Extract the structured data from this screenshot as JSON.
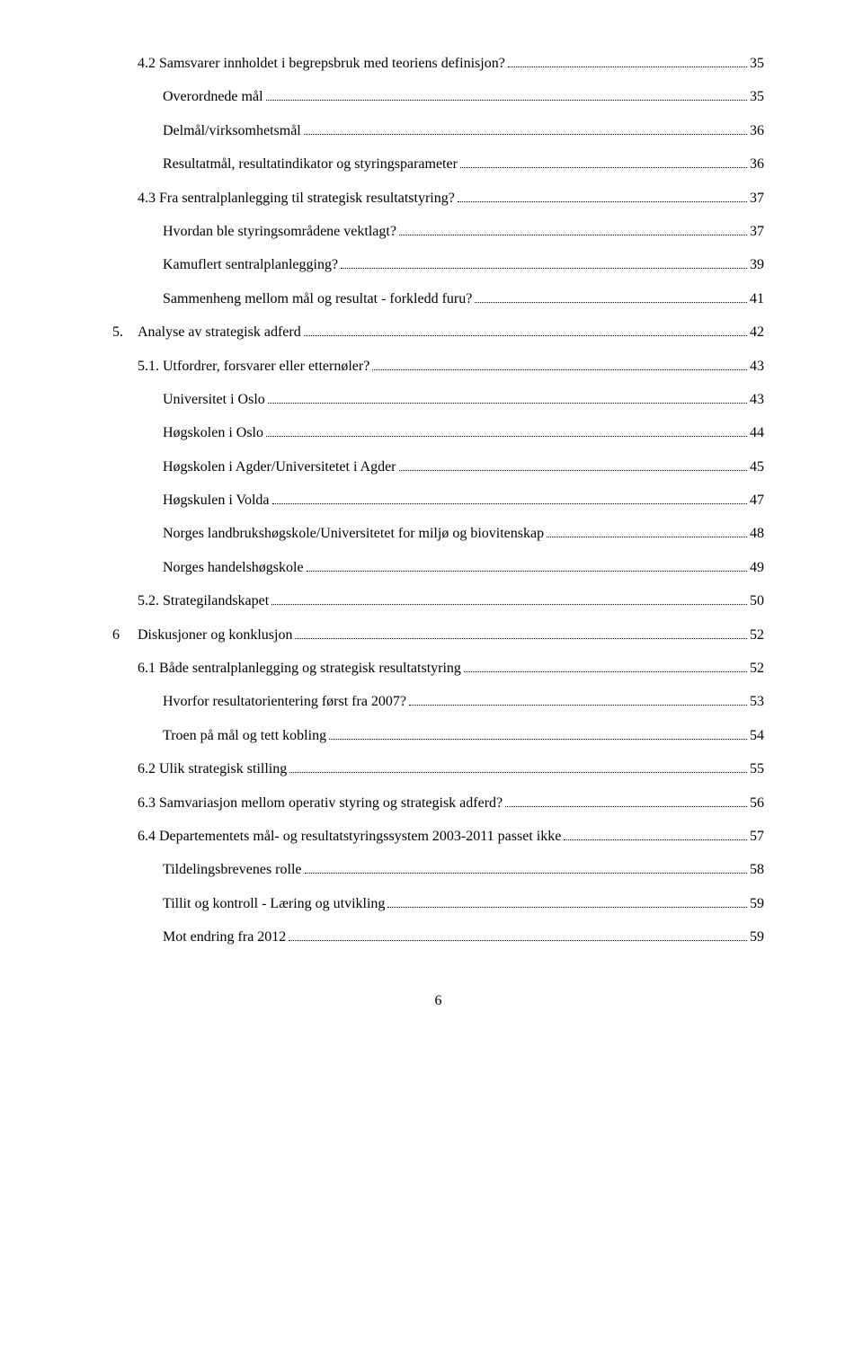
{
  "toc": [
    {
      "indent": 1,
      "num": "",
      "text": "4.2 Samsvarer innholdet i begrepsbruk med teoriens definisjon?",
      "page": "35"
    },
    {
      "indent": 2,
      "num": "",
      "text": "Overordnede mål",
      "page": "35"
    },
    {
      "indent": 2,
      "num": "",
      "text": "Delmål/virksomhetsmål",
      "page": "36"
    },
    {
      "indent": 2,
      "num": "",
      "text": "Resultatmål, resultatindikator og styringsparameter",
      "page": "36"
    },
    {
      "indent": 1,
      "num": "",
      "text": "4.3 Fra sentralplanlegging til strategisk resultatstyring?",
      "page": "37"
    },
    {
      "indent": 2,
      "num": "",
      "text": "Hvordan ble styringsområdene vektlagt?",
      "page": "37"
    },
    {
      "indent": 2,
      "num": "",
      "text": "Kamuflert sentralplanlegging?",
      "page": "39"
    },
    {
      "indent": 2,
      "num": "",
      "text": "Sammenheng mellom mål og resultat - forkledd furu?",
      "page": "41"
    },
    {
      "indent": 0,
      "num": "5.",
      "text": "Analyse av strategisk adferd",
      "page": "42"
    },
    {
      "indent": 1,
      "num": "",
      "text": "5.1. Utfordrer, forsvarer eller etternøler?",
      "page": "43"
    },
    {
      "indent": 2,
      "num": "",
      "text": "Universitet i Oslo",
      "page": "43"
    },
    {
      "indent": 2,
      "num": "",
      "text": "Høgskolen i Oslo",
      "page": "44"
    },
    {
      "indent": 2,
      "num": "",
      "text": "Høgskolen i Agder/Universitetet i Agder",
      "page": "45"
    },
    {
      "indent": 2,
      "num": "",
      "text": "Høgskulen i Volda",
      "page": "47"
    },
    {
      "indent": 2,
      "num": "",
      "text": "Norges landbrukshøgskole/Universitetet for miljø og biovitenskap",
      "page": "48"
    },
    {
      "indent": 2,
      "num": "",
      "text": "Norges handelshøgskole",
      "page": "49"
    },
    {
      "indent": 1,
      "num": "",
      "text": "5.2. Strategilandskapet",
      "page": "50"
    },
    {
      "indent": 0,
      "num": "6",
      "text": "Diskusjoner og konklusjon",
      "page": "52"
    },
    {
      "indent": 1,
      "num": "",
      "text": "6.1 Både sentralplanlegging og strategisk resultatstyring",
      "page": "52"
    },
    {
      "indent": 2,
      "num": "",
      "text": "Hvorfor resultatorientering først fra 2007?",
      "page": "53"
    },
    {
      "indent": 2,
      "num": "",
      "text": "Troen på mål og tett kobling",
      "page": "54"
    },
    {
      "indent": 1,
      "num": "",
      "text": "6.2 Ulik strategisk stilling",
      "page": "55"
    },
    {
      "indent": 1,
      "num": "",
      "text": "6.3 Samvariasjon mellom operativ styring og strategisk adferd?",
      "page": "56"
    },
    {
      "indent": 1,
      "num": "",
      "text": "6.4 Departementets mål- og resultatstyringssystem 2003-2011 passet ikke",
      "page": "57"
    },
    {
      "indent": 2,
      "num": "",
      "text": "Tildelingsbrevenes rolle",
      "page": "58"
    },
    {
      "indent": 2,
      "num": "",
      "text": "Tillit og kontroll - Læring og utvikling",
      "page": "59"
    },
    {
      "indent": 2,
      "num": "",
      "text": "Mot endring fra 2012",
      "page": "59"
    }
  ],
  "footer": {
    "page_number": "6"
  }
}
